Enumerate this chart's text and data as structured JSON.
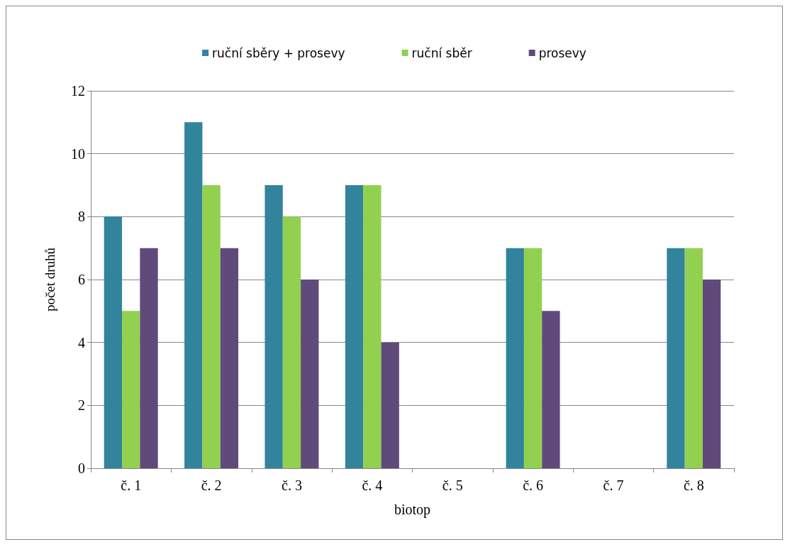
{
  "chart_data": {
    "type": "bar",
    "xlabel": "biotop",
    "ylabel": "počet druhů",
    "categories": [
      "č. 1",
      "č. 2",
      "č. 3",
      "č. 4",
      "č. 5",
      "č. 6",
      "č. 7",
      "č. 8"
    ],
    "series": [
      {
        "name": "ruční sběry + prosevy",
        "color": "#31849b",
        "values": [
          8,
          11,
          9,
          9,
          null,
          7,
          null,
          7
        ]
      },
      {
        "name": "ruční sběr",
        "color": "#92d050",
        "values": [
          5,
          9,
          8,
          9,
          null,
          7,
          null,
          7
        ]
      },
      {
        "name": "prosevy",
        "color": "#604a7b",
        "values": [
          7,
          7,
          6,
          4,
          null,
          5,
          null,
          6
        ]
      }
    ],
    "ylim": [
      0,
      12
    ],
    "yticks": [
      0,
      2,
      4,
      6,
      8,
      10,
      12
    ],
    "grid": "y",
    "legend": "top"
  }
}
